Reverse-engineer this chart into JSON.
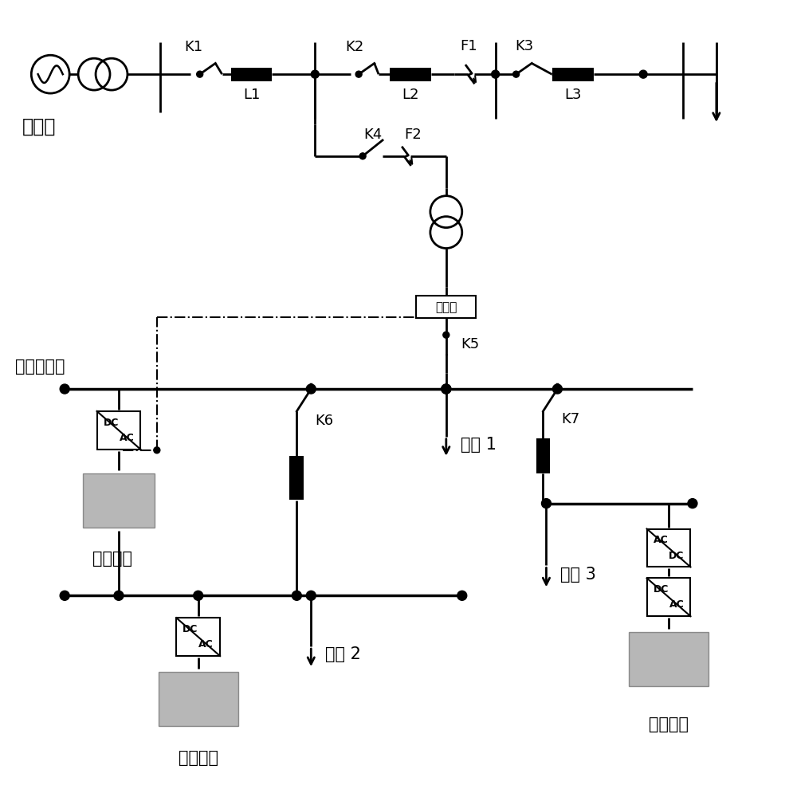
{
  "bg_color": "#ffffff",
  "line_color": "#000000",
  "main_grid_label": "主电网",
  "pcc_label": "公共耦合点",
  "fast_storage_label": "快速储能",
  "pv_label": "光伏发电",
  "wind_label": "风力发电",
  "load1_label": "负荷 1",
  "load2_label": "负荷 2",
  "load3_label": "负荷 3",
  "limiter_label": "限流器",
  "k1": "K1",
  "k2": "K2",
  "k3": "K3",
  "k4": "K4",
  "k5": "K5",
  "k6": "K6",
  "k7": "K7",
  "l1": "L1",
  "l2": "L2",
  "l3": "L3",
  "f1": "F1",
  "f2": "F2",
  "dc_ac_top": "DC",
  "dc_ac_bot": "AC",
  "ac_dc_top": "AC",
  "ac_dc_bot": "DC"
}
